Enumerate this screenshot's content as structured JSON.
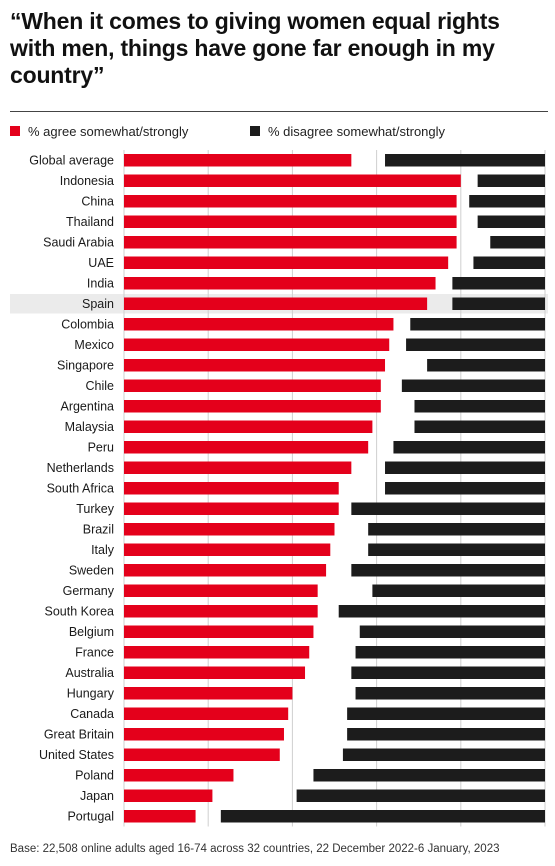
{
  "title": "“When it comes to giving women equal rights with men, things have gone far enough in my country”",
  "legend": {
    "agree": "% agree somewhat/strongly",
    "disagree": "% disagree somewhat/strongly"
  },
  "colors": {
    "agree": "#e4001b",
    "disagree": "#1c1c1c",
    "highlight": "#ebebeb",
    "grid": "#cfcfcf"
  },
  "footnote": "Base: 22,508 online adults aged 16-74 across 32 countries, 22 December 2022-6 January, 2023",
  "chart_data": {
    "type": "bar",
    "orientation": "horizontal",
    "highlighted_category": "Spain",
    "xlim": [
      0,
      100
    ],
    "grid": true,
    "categories": [
      "Global average",
      "Indonesia",
      "China",
      "Thailand",
      "Saudi Arabia",
      "UAE",
      "India",
      "Spain",
      "Colombia",
      "Mexico",
      "Singapore",
      "Chile",
      "Argentina",
      "Malaysia",
      "Peru",
      "Netherlands",
      "South Africa",
      "Turkey",
      "Brazil",
      "Italy",
      "Sweden",
      "Germany",
      "South Korea",
      "Belgium",
      "France",
      "Australia",
      "Hungary",
      "Canada",
      "Great Britain",
      "United States",
      "Poland",
      "Japan",
      "Portugal"
    ],
    "series": [
      {
        "name": "% agree somewhat/strongly",
        "values": [
          54,
          80,
          79,
          79,
          79,
          77,
          74,
          72,
          64,
          63,
          62,
          61,
          61,
          59,
          58,
          54,
          51,
          51,
          50,
          49,
          48,
          46,
          46,
          45,
          44,
          43,
          40,
          39,
          38,
          37,
          26,
          21,
          17
        ]
      },
      {
        "name": "% disagree somewhat/strongly",
        "values": [
          38,
          16,
          18,
          16,
          13,
          17,
          22,
          22,
          32,
          33,
          28,
          34,
          31,
          31,
          36,
          38,
          38,
          46,
          42,
          42,
          46,
          41,
          49,
          44,
          45,
          46,
          45,
          47,
          47,
          48,
          55,
          59,
          77
        ]
      }
    ]
  }
}
